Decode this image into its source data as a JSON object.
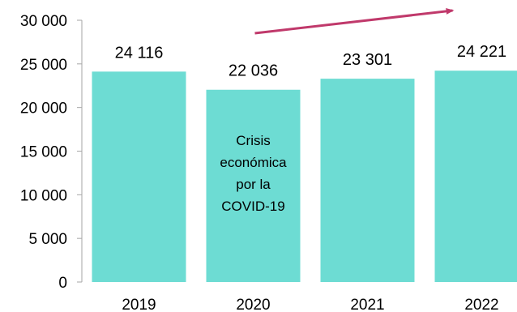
{
  "chart_data": {
    "type": "bar",
    "title": "",
    "xlabel": "",
    "ylabel": "",
    "categories": [
      "2019",
      "2020",
      "2021",
      "2022"
    ],
    "values": [
      24116,
      22036,
      23301,
      24221
    ],
    "value_labels": [
      "24 116",
      "22 036",
      "23 301",
      "24 221"
    ],
    "ylim": [
      0,
      30000
    ],
    "y_ticks": [
      0,
      5000,
      10000,
      15000,
      20000,
      25000,
      30000
    ],
    "y_tick_labels": [
      "0",
      "5 000",
      "10 000",
      "15 000",
      "20 000",
      "25 000",
      "30 000"
    ],
    "grid": false,
    "legend": "none",
    "bar_color": "#6ddcd3",
    "annotation": {
      "category": "2020",
      "lines": [
        "Crisis",
        "económica",
        "por la",
        "COVID-19"
      ]
    },
    "trend_arrow": {
      "color": "#c0396b",
      "from_category": "2020",
      "to_category": "2022"
    }
  }
}
